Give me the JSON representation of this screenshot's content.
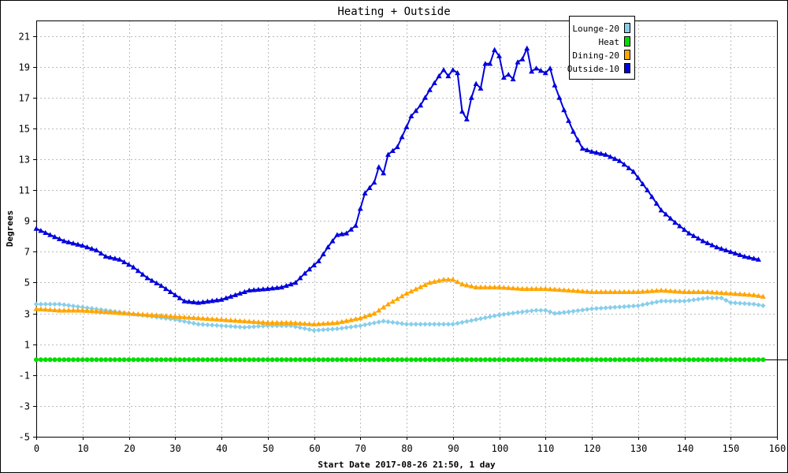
{
  "chart_data": {
    "type": "line",
    "title": "Heating + Outside",
    "xlabel": "Start Date 2017-08-26 21:50, 1 day",
    "ylabel": "Degrees",
    "xlim": [
      0,
      160
    ],
    "ylim": [
      -5,
      22
    ],
    "x_ticks": [
      "0",
      "10",
      "20",
      "30",
      "40",
      "50",
      "60",
      "70",
      "80",
      "90",
      "100",
      "110",
      "120",
      "130",
      "140",
      "150",
      "160"
    ],
    "y_ticks": [
      "-5",
      "-3",
      "-1",
      "1",
      "3",
      "5",
      "7",
      "9",
      "11",
      "13",
      "15",
      "17",
      "19",
      "21"
    ],
    "grid": true,
    "legend_position": "top-right",
    "series": [
      {
        "name": "Lounge-20",
        "color": "#87ceeb",
        "marker": "diamond",
        "points": [
          [
            0,
            3.6
          ],
          [
            5,
            3.6
          ],
          [
            10,
            3.4
          ],
          [
            15,
            3.2
          ],
          [
            20,
            3.0
          ],
          [
            25,
            2.8
          ],
          [
            30,
            2.6
          ],
          [
            35,
            2.3
          ],
          [
            40,
            2.2
          ],
          [
            45,
            2.1
          ],
          [
            50,
            2.2
          ],
          [
            55,
            2.2
          ],
          [
            60,
            1.9
          ],
          [
            65,
            2.0
          ],
          [
            70,
            2.2
          ],
          [
            75,
            2.5
          ],
          [
            80,
            2.3
          ],
          [
            85,
            2.3
          ],
          [
            90,
            2.3
          ],
          [
            95,
            2.6
          ],
          [
            100,
            2.9
          ],
          [
            105,
            3.1
          ],
          [
            108,
            3.2
          ],
          [
            110,
            3.2
          ],
          [
            112,
            3.0
          ],
          [
            115,
            3.1
          ],
          [
            120,
            3.3
          ],
          [
            125,
            3.4
          ],
          [
            130,
            3.5
          ],
          [
            135,
            3.8
          ],
          [
            140,
            3.8
          ],
          [
            145,
            4.0
          ],
          [
            148,
            4.0
          ],
          [
            150,
            3.7
          ],
          [
            155,
            3.6
          ],
          [
            157,
            3.5
          ]
        ]
      },
      {
        "name": "Heat",
        "color": "#00dd00",
        "marker": "circle",
        "points": [
          [
            0,
            0
          ],
          [
            157,
            0
          ]
        ]
      },
      {
        "name": "Dining-20",
        "color": "#ffa500",
        "marker": "triangle",
        "points": [
          [
            0,
            3.3
          ],
          [
            5,
            3.2
          ],
          [
            10,
            3.2
          ],
          [
            15,
            3.1
          ],
          [
            20,
            3.0
          ],
          [
            25,
            2.9
          ],
          [
            30,
            2.8
          ],
          [
            35,
            2.7
          ],
          [
            40,
            2.6
          ],
          [
            45,
            2.5
          ],
          [
            50,
            2.4
          ],
          [
            55,
            2.4
          ],
          [
            60,
            2.3
          ],
          [
            65,
            2.4
          ],
          [
            70,
            2.7
          ],
          [
            73,
            3.0
          ],
          [
            76,
            3.6
          ],
          [
            80,
            4.3
          ],
          [
            85,
            5.0
          ],
          [
            88,
            5.2
          ],
          [
            90,
            5.2
          ],
          [
            92,
            4.9
          ],
          [
            95,
            4.7
          ],
          [
            100,
            4.7
          ],
          [
            105,
            4.6
          ],
          [
            110,
            4.6
          ],
          [
            115,
            4.5
          ],
          [
            120,
            4.4
          ],
          [
            125,
            4.4
          ],
          [
            130,
            4.4
          ],
          [
            135,
            4.5
          ],
          [
            140,
            4.4
          ],
          [
            145,
            4.4
          ],
          [
            150,
            4.3
          ],
          [
            155,
            4.2
          ],
          [
            157,
            4.1
          ]
        ]
      },
      {
        "name": "Outside-10",
        "color": "#0000dd",
        "marker": "triangle",
        "points": [
          [
            0,
            8.5
          ],
          [
            3,
            8.1
          ],
          [
            6,
            7.7
          ],
          [
            10,
            7.4
          ],
          [
            13,
            7.1
          ],
          [
            15,
            6.7
          ],
          [
            18,
            6.5
          ],
          [
            21,
            6.0
          ],
          [
            24,
            5.3
          ],
          [
            27,
            4.8
          ],
          [
            30,
            4.2
          ],
          [
            32,
            3.8
          ],
          [
            35,
            3.7
          ],
          [
            40,
            3.9
          ],
          [
            43,
            4.2
          ],
          [
            46,
            4.5
          ],
          [
            50,
            4.6
          ],
          [
            53,
            4.7
          ],
          [
            56,
            5.0
          ],
          [
            58,
            5.6
          ],
          [
            61,
            6.4
          ],
          [
            63,
            7.3
          ],
          [
            65,
            8.1
          ],
          [
            67,
            8.2
          ],
          [
            69,
            8.7
          ],
          [
            70,
            9.8
          ],
          [
            71,
            10.8
          ],
          [
            73,
            11.5
          ],
          [
            74,
            12.5
          ],
          [
            75,
            12.1
          ],
          [
            76,
            13.3
          ],
          [
            78,
            13.8
          ],
          [
            80,
            15.1
          ],
          [
            81,
            15.8
          ],
          [
            83,
            16.5
          ],
          [
            85,
            17.5
          ],
          [
            87,
            18.4
          ],
          [
            88,
            18.8
          ],
          [
            89,
            18.4
          ],
          [
            90,
            18.8
          ],
          [
            91,
            18.6
          ],
          [
            92,
            16.1
          ],
          [
            93,
            15.6
          ],
          [
            94,
            17.0
          ],
          [
            95,
            17.9
          ],
          [
            96,
            17.6
          ],
          [
            97,
            19.2
          ],
          [
            98,
            19.2
          ],
          [
            99,
            20.1
          ],
          [
            100,
            19.7
          ],
          [
            101,
            18.3
          ],
          [
            102,
            18.5
          ],
          [
            103,
            18.2
          ],
          [
            104,
            19.3
          ],
          [
            105,
            19.5
          ],
          [
            106,
            20.2
          ],
          [
            107,
            18.7
          ],
          [
            108,
            18.9
          ],
          [
            110,
            18.6
          ],
          [
            111,
            18.9
          ],
          [
            112,
            17.8
          ],
          [
            114,
            16.2
          ],
          [
            116,
            14.8
          ],
          [
            118,
            13.7
          ],
          [
            120,
            13.5
          ],
          [
            123,
            13.3
          ],
          [
            126,
            12.9
          ],
          [
            129,
            12.2
          ],
          [
            132,
            11.0
          ],
          [
            135,
            9.7
          ],
          [
            138,
            8.9
          ],
          [
            141,
            8.2
          ],
          [
            144,
            7.7
          ],
          [
            147,
            7.3
          ],
          [
            150,
            7.0
          ],
          [
            153,
            6.7
          ],
          [
            156,
            6.5
          ]
        ]
      }
    ]
  }
}
